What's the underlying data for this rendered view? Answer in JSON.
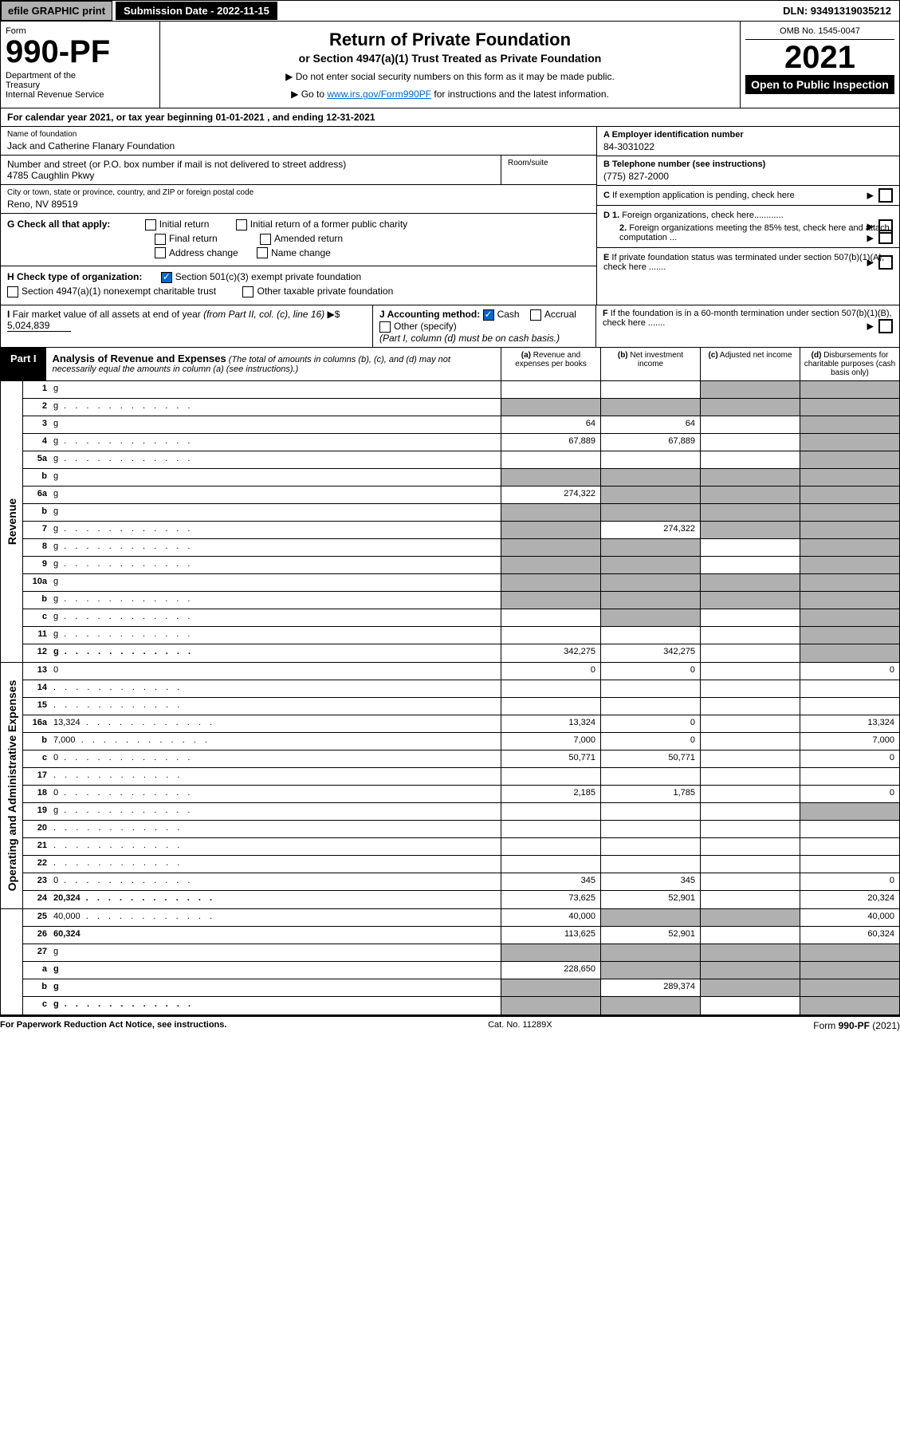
{
  "topbar": {
    "efile": "efile GRAPHIC print",
    "subdate": "Submission Date - 2022-11-15",
    "dln": "DLN: 93491319035212"
  },
  "header": {
    "form_label": "Form",
    "form_num": "990-PF",
    "dept": "Department of the Treasury\nInternal Revenue Service",
    "title": "Return of Private Foundation",
    "subtitle": "or Section 4947(a)(1) Trust Treated as Private Foundation",
    "instr1": "▶ Do not enter social security numbers on this form as it may be made public.",
    "instr2_pre": "▶ Go to ",
    "instr2_link": "www.irs.gov/Form990PF",
    "instr2_post": " for instructions and the latest information.",
    "omb": "OMB No. 1545-0047",
    "year": "2021",
    "open": "Open to Public Inspection"
  },
  "calyear": "For calendar year 2021, or tax year beginning 01-01-2021                           , and ending 12-31-2021",
  "info": {
    "name_label": "Name of foundation",
    "name": "Jack and Catherine Flanary Foundation",
    "addr_label": "Number and street (or P.O. box number if mail is not delivered to street address)",
    "addr": "4785 Caughlin Pkwy",
    "room_label": "Room/suite",
    "city_label": "City or town, state or province, country, and ZIP or foreign postal code",
    "city": "Reno, NV  89519",
    "ein_label": "A Employer identification number",
    "ein": "84-3031022",
    "tel_label": "B Telephone number (see instructions)",
    "tel": "(775) 827-2000",
    "c": "C If exemption application is pending, check here",
    "d1": "D 1. Foreign organizations, check here............",
    "d2": "2. Foreign organizations meeting the 85% test, check here and attach computation ...",
    "e": "E If private foundation status was terminated under section 507(b)(1)(A), check here .......",
    "f": "F If the foundation is in a 60-month termination under section 507(b)(1)(B), check here ......."
  },
  "g": {
    "label": "G Check all that apply:",
    "opts": [
      "Initial return",
      "Final return",
      "Address change",
      "Initial return of a former public charity",
      "Amended return",
      "Name change"
    ]
  },
  "h": {
    "label": "H Check type of organization:",
    "opt1": "Section 501(c)(3) exempt private foundation",
    "opt2": "Section 4947(a)(1) nonexempt charitable trust",
    "opt3": "Other taxable private foundation"
  },
  "i": {
    "label": "I Fair market value of all assets at end of year (from Part II, col. (c), line 16) ▶$",
    "value": "5,024,839"
  },
  "j": {
    "label": "J Accounting method:",
    "cash": "Cash",
    "accrual": "Accrual",
    "other": "Other (specify)",
    "note": "(Part I, column (d) must be on cash basis.)"
  },
  "part1": {
    "label": "Part I",
    "title": "Analysis of Revenue and Expenses",
    "desc": "(The total of amounts in columns (b), (c), and (d) may not necessarily equal the amounts in column (a) (see instructions).)",
    "cols": {
      "a": "(a) Revenue and expenses per books",
      "b": "(b) Net investment income",
      "c": "(c) Adjusted net income",
      "d": "(d) Disbursements for charitable purposes (cash basis only)"
    }
  },
  "side_labels": {
    "rev": "Revenue",
    "exp": "Operating and Administrative Expenses"
  },
  "rows": [
    {
      "n": "1",
      "d": "g",
      "a": "",
      "b": "",
      "c": "g"
    },
    {
      "n": "2",
      "d": "g",
      "a": "g",
      "b": "g",
      "c": "g",
      "dots": true
    },
    {
      "n": "3",
      "d": "g",
      "a": "64",
      "b": "64",
      "c": ""
    },
    {
      "n": "4",
      "d": "g",
      "a": "67,889",
      "b": "67,889",
      "c": "",
      "dots": true
    },
    {
      "n": "5a",
      "d": "g",
      "a": "",
      "b": "",
      "c": "",
      "dots": true
    },
    {
      "n": "b",
      "d": "g",
      "a": "g",
      "b": "g",
      "c": "g"
    },
    {
      "n": "6a",
      "d": "g",
      "a": "274,322",
      "b": "g",
      "c": "g"
    },
    {
      "n": "b",
      "d": "g",
      "a": "g",
      "b": "g",
      "c": "g"
    },
    {
      "n": "7",
      "d": "g",
      "a": "g",
      "b": "274,322",
      "c": "g",
      "dots": true
    },
    {
      "n": "8",
      "d": "g",
      "a": "g",
      "b": "g",
      "c": "",
      "dots": true
    },
    {
      "n": "9",
      "d": "g",
      "a": "g",
      "b": "g",
      "c": "",
      "dots": true
    },
    {
      "n": "10a",
      "d": "g",
      "a": "g",
      "b": "g",
      "c": "g"
    },
    {
      "n": "b",
      "d": "g",
      "a": "g",
      "b": "g",
      "c": "g",
      "dots": true
    },
    {
      "n": "c",
      "d": "g",
      "a": "",
      "b": "g",
      "c": "",
      "dots": true
    },
    {
      "n": "11",
      "d": "g",
      "a": "",
      "b": "",
      "c": "",
      "dots": true
    },
    {
      "n": "12",
      "d": "g",
      "a": "342,275",
      "b": "342,275",
      "c": "",
      "dots": true,
      "bold": true
    },
    {
      "n": "13",
      "d": "0",
      "a": "0",
      "b": "0",
      "c": ""
    },
    {
      "n": "14",
      "d": "",
      "a": "",
      "b": "",
      "c": "",
      "dots": true
    },
    {
      "n": "15",
      "d": "",
      "a": "",
      "b": "",
      "c": "",
      "dots": true
    },
    {
      "n": "16a",
      "d": "13,324",
      "a": "13,324",
      "b": "0",
      "c": "",
      "dots": true
    },
    {
      "n": "b",
      "d": "7,000",
      "a": "7,000",
      "b": "0",
      "c": "",
      "dots": true
    },
    {
      "n": "c",
      "d": "0",
      "a": "50,771",
      "b": "50,771",
      "c": "",
      "dots": true
    },
    {
      "n": "17",
      "d": "",
      "a": "",
      "b": "",
      "c": "",
      "dots": true
    },
    {
      "n": "18",
      "d": "0",
      "a": "2,185",
      "b": "1,785",
      "c": "",
      "dots": true
    },
    {
      "n": "19",
      "d": "g",
      "a": "",
      "b": "",
      "c": "",
      "dots": true
    },
    {
      "n": "20",
      "d": "",
      "a": "",
      "b": "",
      "c": "",
      "dots": true
    },
    {
      "n": "21",
      "d": "",
      "a": "",
      "b": "",
      "c": "",
      "dots": true
    },
    {
      "n": "22",
      "d": "",
      "a": "",
      "b": "",
      "c": "",
      "dots": true
    },
    {
      "n": "23",
      "d": "0",
      "a": "345",
      "b": "345",
      "c": "",
      "dots": true
    },
    {
      "n": "24",
      "d": "20,324",
      "a": "73,625",
      "b": "52,901",
      "c": "",
      "dots": true,
      "bold": true
    },
    {
      "n": "25",
      "d": "40,000",
      "a": "40,000",
      "b": "g",
      "c": "g",
      "dots": true
    },
    {
      "n": "26",
      "d": "60,324",
      "a": "113,625",
      "b": "52,901",
      "c": "",
      "bold": true
    },
    {
      "n": "27",
      "d": "g",
      "a": "g",
      "b": "g",
      "c": "g"
    },
    {
      "n": "a",
      "d": "g",
      "a": "228,650",
      "b": "g",
      "c": "g",
      "bold": true
    },
    {
      "n": "b",
      "d": "g",
      "a": "g",
      "b": "289,374",
      "c": "g",
      "bold": true
    },
    {
      "n": "c",
      "d": "g",
      "a": "g",
      "b": "g",
      "c": "",
      "bold": true,
      "dots": true
    }
  ],
  "footer": {
    "left": "For Paperwork Reduction Act Notice, see instructions.",
    "mid": "Cat. No. 11289X",
    "right": "Form 990-PF (2021)"
  },
  "colors": {
    "grey": "#b0b0b0",
    "link": "#0066cc"
  }
}
